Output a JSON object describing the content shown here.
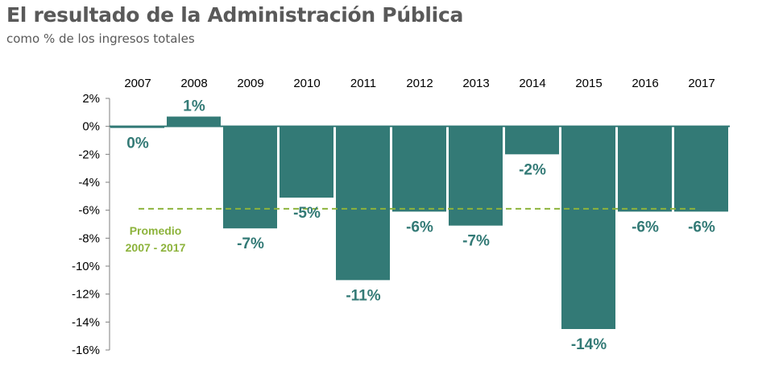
{
  "title": "El resultado de la Administración Pública",
  "subtitle": "como % de los ingresos totales",
  "chart_data": {
    "type": "bar",
    "categories": [
      "2007",
      "2008",
      "2009",
      "2010",
      "2011",
      "2012",
      "2013",
      "2014",
      "2015",
      "2016",
      "2017"
    ],
    "values": [
      -0.1,
      0.7,
      -7.3,
      -5.1,
      -11.0,
      -6.1,
      -7.1,
      -2.0,
      -14.5,
      -6.1,
      -6.1
    ],
    "data_labels": [
      "0%",
      "1%",
      "-7%",
      "-5%",
      "-11%",
      "-6%",
      "-7%",
      "-2%",
      "-14%",
      "-6%",
      "-6%"
    ],
    "ylim": [
      -16,
      2
    ],
    "yticks": [
      2,
      0,
      -2,
      -4,
      -6,
      -8,
      -10,
      -12,
      -14,
      -16
    ],
    "ytick_labels": [
      "2%",
      "0%",
      "-2%",
      "-4%",
      "-6%",
      "-8%",
      "-10%",
      "-12%",
      "-14%",
      "-16%"
    ],
    "average": {
      "value": -5.9,
      "label_lines": [
        "Promedio",
        "2007 - 2017"
      ]
    },
    "colors": {
      "bar": "#337a76",
      "average": "#8db33c",
      "label": "#337a76"
    },
    "xlabel": "",
    "ylabel": "",
    "category_axis_position": "top",
    "grid": false
  }
}
